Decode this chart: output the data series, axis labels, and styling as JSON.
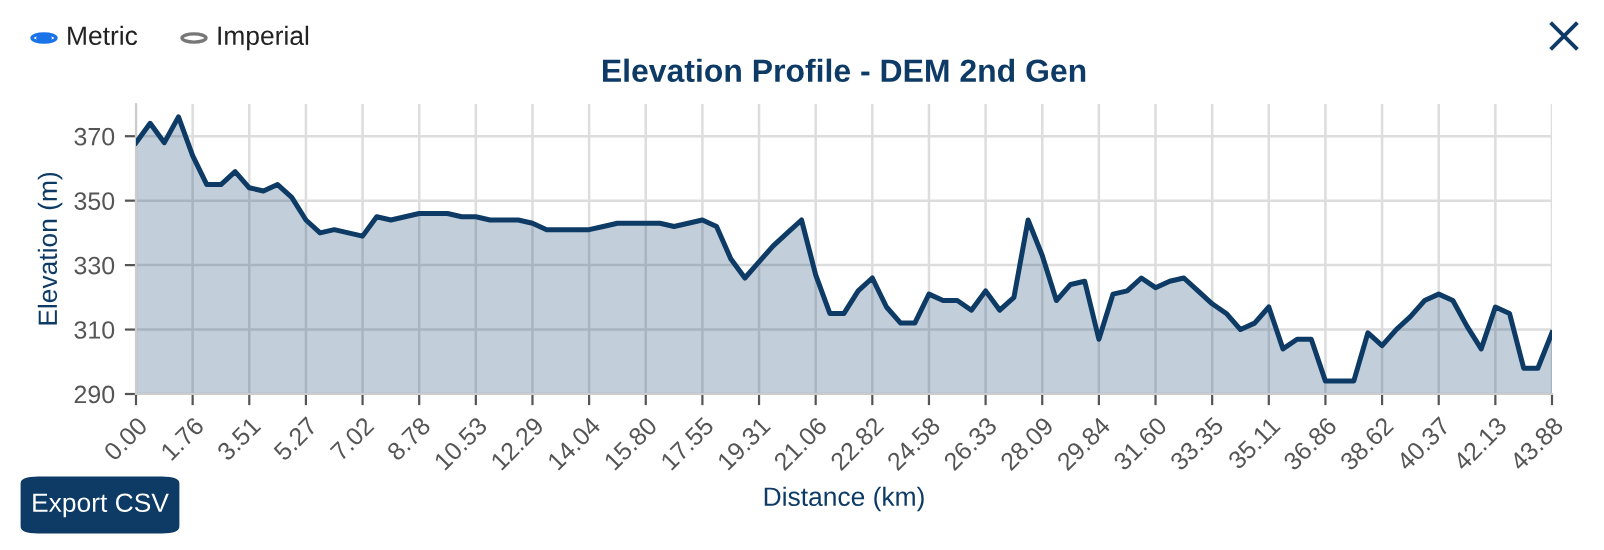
{
  "chart_data": {
    "type": "area",
    "title": "Elevation Profile - DEM 2nd Gen",
    "xlabel": "Distance (km)",
    "ylabel": "Elevation (m)",
    "categories": [
      "0.00",
      null,
      null,
      null,
      "1.76",
      null,
      null,
      null,
      "3.51",
      null,
      null,
      null,
      "5.27",
      null,
      null,
      null,
      "7.02",
      null,
      null,
      null,
      "8.78",
      null,
      null,
      null,
      "10.53",
      null,
      null,
      null,
      "12.29",
      null,
      null,
      null,
      "14.04",
      null,
      null,
      null,
      "15.80",
      null,
      null,
      null,
      "17.55",
      null,
      null,
      null,
      "19.31",
      null,
      null,
      null,
      "21.06",
      null,
      null,
      null,
      "22.82",
      null,
      null,
      null,
      "24.58",
      null,
      null,
      null,
      "26.33",
      null,
      null,
      null,
      "28.09",
      null,
      null,
      null,
      "29.84",
      null,
      null,
      null,
      "31.60",
      null,
      null,
      null,
      "33.35",
      null,
      null,
      null,
      "35.11",
      null,
      null,
      null,
      "36.86",
      null,
      null,
      null,
      "38.62",
      null,
      null,
      null,
      "40.37",
      null,
      null,
      null,
      "42.13",
      null,
      null,
      null,
      "43.88"
    ],
    "series": [
      {
        "color": "#0d3b66",
        "values": [
          368,
          374,
          368,
          376,
          364,
          355,
          355,
          359,
          354,
          353,
          355,
          351,
          344,
          340,
          341,
          340,
          339,
          345,
          344,
          345,
          346,
          346,
          346,
          345,
          345,
          344,
          344,
          344,
          343,
          341,
          341,
          341,
          341,
          342,
          343,
          343,
          343,
          343,
          342,
          343,
          344,
          342,
          332,
          326,
          331,
          336,
          340,
          344,
          327,
          315,
          315,
          322,
          326,
          317,
          312,
          312,
          321,
          319,
          319,
          316,
          322,
          316,
          320,
          344,
          333,
          319,
          324,
          325,
          307,
          321,
          322,
          326,
          323,
          325,
          326,
          322,
          318,
          315,
          310,
          312,
          317,
          304,
          307,
          307,
          294,
          294,
          294,
          309,
          305,
          310,
          314,
          319,
          321,
          319,
          311,
          304,
          317,
          315,
          298,
          298,
          309
        ]
      }
    ],
    "ylim": [
      290,
      380
    ],
    "yticks": [
      290,
      310,
      330,
      350,
      370
    ],
    "grid": true,
    "line_style": "solid",
    "marker": "none",
    "legend": false,
    "annotations": [
      "Metric",
      "Imperial",
      "Export CSV"
    ]
  }
}
